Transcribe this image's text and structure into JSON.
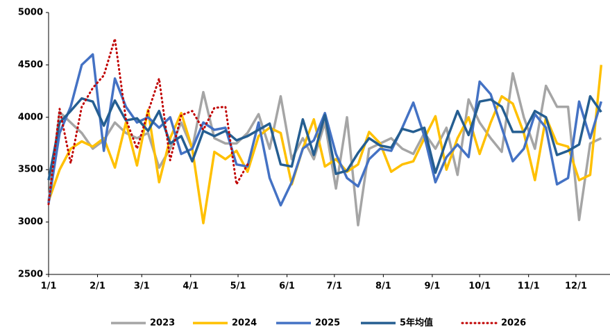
{
  "chart_data": {
    "type": "line",
    "x": [
      0,
      7,
      14,
      21,
      28,
      35,
      42,
      49,
      56,
      63,
      70,
      77,
      84,
      91,
      98,
      105,
      112,
      119,
      126,
      133,
      140,
      147,
      154,
      161,
      168,
      175,
      182,
      189,
      196,
      203,
      210,
      217,
      224,
      231,
      238,
      245,
      252,
      259,
      266,
      273,
      280,
      287,
      294,
      301,
      308,
      315,
      322,
      329,
      336,
      343,
      350
    ],
    "xlim": [
      0,
      356
    ],
    "xticks": [
      {
        "value": 0,
        "label": "1/1"
      },
      {
        "value": 31,
        "label": "2/1"
      },
      {
        "value": 59,
        "label": "3/1"
      },
      {
        "value": 90,
        "label": "4/1"
      },
      {
        "value": 120,
        "label": "5/1"
      },
      {
        "value": 151,
        "label": "6/1"
      },
      {
        "value": 181,
        "label": "7/1"
      },
      {
        "value": 212,
        "label": "8/1"
      },
      {
        "value": 243,
        "label": "9/1"
      },
      {
        "value": 273,
        "label": "10/1"
      },
      {
        "value": 304,
        "label": "11/1"
      },
      {
        "value": 334,
        "label": "12/1"
      }
    ],
    "ylim": [
      2500,
      5000
    ],
    "yticks": [
      2500,
      3000,
      3500,
      4000,
      4500,
      5000
    ],
    "series": [
      {
        "name": "2023",
        "color": "#a5a5a5",
        "dash": false,
        "values": [
          3200,
          4050,
          3950,
          3850,
          3700,
          3780,
          3950,
          3850,
          3800,
          3850,
          3520,
          3700,
          3950,
          3700,
          4240,
          3800,
          3750,
          3750,
          3850,
          4030,
          3700,
          4200,
          3600,
          3800,
          3600,
          3950,
          3320,
          4000,
          2970,
          3700,
          3750,
          3800,
          3700,
          3650,
          3850,
          3700,
          3900,
          3450,
          4170,
          3950,
          3800,
          3670,
          4420,
          4000,
          3700,
          4300,
          4100,
          4100,
          3020,
          3750,
          3800
        ]
      },
      {
        "name": "2024",
        "color": "#ffc000",
        "dash": false,
        "values": [
          3200,
          3500,
          3700,
          3770,
          3720,
          3800,
          3520,
          3950,
          3540,
          4070,
          3380,
          3800,
          4040,
          3700,
          2990,
          3670,
          3600,
          3680,
          3480,
          3820,
          3900,
          3850,
          3360,
          3700,
          3980,
          3530,
          3600,
          3480,
          3550,
          3860,
          3750,
          3480,
          3550,
          3580,
          3800,
          4010,
          3500,
          3800,
          4000,
          3650,
          3950,
          4200,
          4130,
          3850,
          3400,
          4000,
          3750,
          3720,
          3400,
          3450,
          4500
        ]
      },
      {
        "name": "2025",
        "color": "#4472c4",
        "dash": false,
        "values": [
          3180,
          3850,
          4100,
          4500,
          4600,
          3680,
          4370,
          4100,
          3950,
          4000,
          3900,
          4000,
          3650,
          3700,
          3950,
          3880,
          3900,
          3550,
          3530,
          3950,
          3420,
          3160,
          3380,
          3700,
          3780,
          4040,
          3650,
          3420,
          3340,
          3600,
          3700,
          3680,
          3900,
          4140,
          3820,
          3380,
          3620,
          3740,
          3620,
          4340,
          4220,
          3900,
          3580,
          3700,
          4030,
          3900,
          3360,
          3420,
          4150,
          3800,
          4150
        ]
      },
      {
        "name": "5年均值",
        "color": "#255e91",
        "dash": false,
        "values": [
          3400,
          3950,
          4060,
          4180,
          4150,
          3920,
          4160,
          3970,
          3990,
          3870,
          4060,
          3750,
          3820,
          3580,
          3870,
          3820,
          3870,
          3780,
          3820,
          3880,
          3940,
          3550,
          3530,
          3980,
          3640,
          4020,
          3460,
          3490,
          3660,
          3800,
          3730,
          3710,
          3890,
          3860,
          3900,
          3470,
          3780,
          4060,
          3830,
          4150,
          4170,
          4100,
          3860,
          3860,
          4060,
          4000,
          3640,
          3680,
          3740,
          4200,
          4050
        ]
      },
      {
        "name": "2026",
        "color": "#c00000",
        "dash": true,
        "values": [
          3170,
          4080,
          3560,
          4100,
          4280,
          4400,
          4750,
          3980,
          3700,
          4050,
          4370,
          3590,
          4020,
          4060,
          3880,
          4090,
          4100,
          3360,
          3550,
          null,
          null,
          null,
          null,
          null,
          null,
          null,
          null,
          null,
          null,
          null,
          null,
          null,
          null,
          null,
          null,
          null,
          null,
          null,
          null,
          null,
          null,
          null,
          null,
          null,
          null,
          null,
          null,
          null,
          null,
          null,
          null
        ]
      }
    ]
  }
}
